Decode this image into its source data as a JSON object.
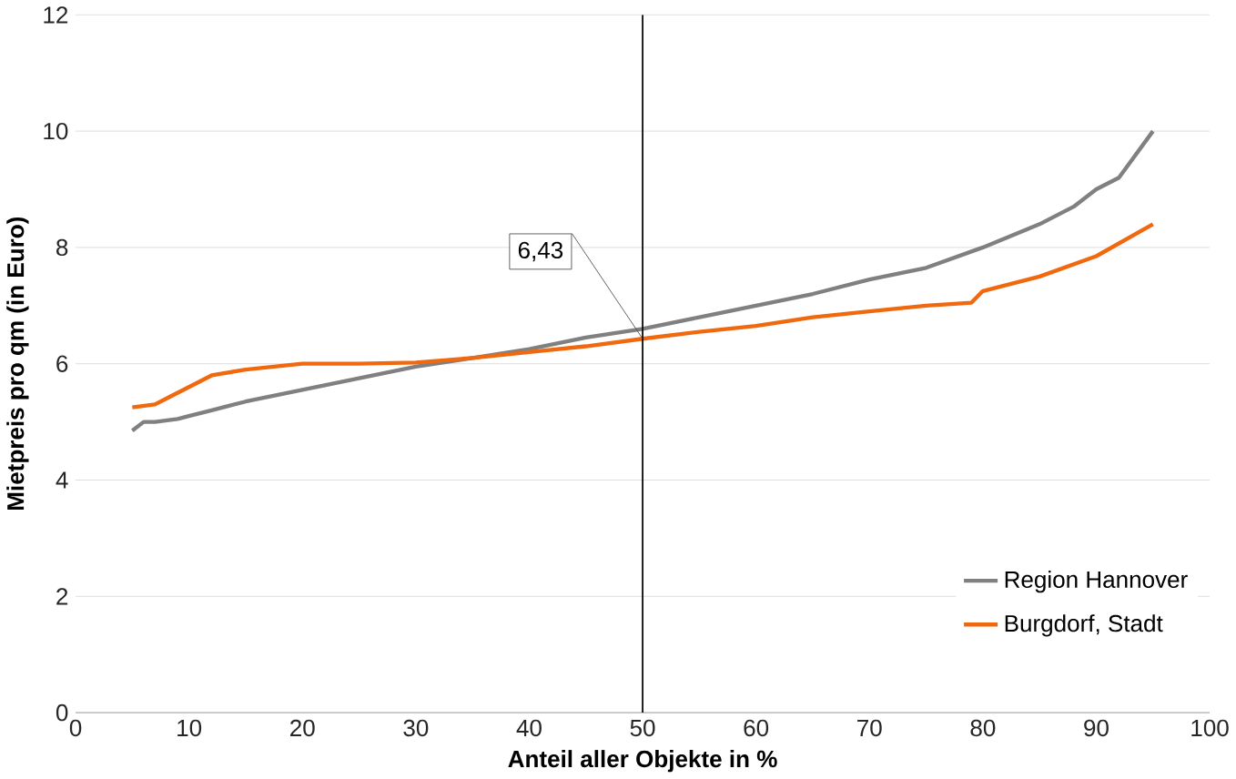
{
  "chart_data": {
    "type": "line",
    "xlabel": "Anteil aller Objekte in %",
    "ylabel": "Mietpreis pro qm (in Euro)",
    "xlim": [
      0,
      100
    ],
    "xticks": [
      0,
      10,
      20,
      30,
      40,
      50,
      60,
      70,
      80,
      90,
      100
    ],
    "ylim": [
      0,
      12
    ],
    "yticks": [
      0,
      2,
      4,
      6,
      8,
      10,
      12
    ],
    "grid": "y",
    "legend": "bottom right",
    "line_style": "solid",
    "ref_lines": [
      {
        "axis": "x",
        "value": 50,
        "color": "#000000"
      }
    ],
    "annotations": [
      {
        "text": "6,43",
        "x": 50,
        "y": 6.43
      }
    ],
    "series": [
      {
        "name": "Region Hannover",
        "color": "#808080",
        "x": [
          5,
          6,
          7,
          9,
          10,
          12,
          15,
          20,
          25,
          30,
          35,
          40,
          45,
          50,
          55,
          60,
          65,
          70,
          75,
          80,
          85,
          88,
          90,
          92,
          95
        ],
        "values": [
          4.85,
          5.0,
          5.0,
          5.05,
          5.1,
          5.2,
          5.35,
          5.55,
          5.75,
          5.95,
          6.1,
          6.25,
          6.45,
          6.6,
          6.8,
          7.0,
          7.2,
          7.45,
          7.65,
          8.0,
          8.4,
          8.7,
          9.0,
          9.2,
          10.0
        ]
      },
      {
        "name": "Burgdorf, Stadt",
        "color": "#f0690f",
        "x": [
          5,
          7,
          8,
          10,
          12,
          15,
          20,
          25,
          30,
          35,
          40,
          45,
          50,
          55,
          60,
          65,
          70,
          75,
          79,
          80,
          85,
          90,
          95
        ],
        "values": [
          5.25,
          5.3,
          5.4,
          5.6,
          5.8,
          5.9,
          6.0,
          6.0,
          6.02,
          6.1,
          6.2,
          6.3,
          6.43,
          6.55,
          6.65,
          6.8,
          6.9,
          7.0,
          7.05,
          7.25,
          7.5,
          7.85,
          8.4
        ]
      }
    ]
  }
}
